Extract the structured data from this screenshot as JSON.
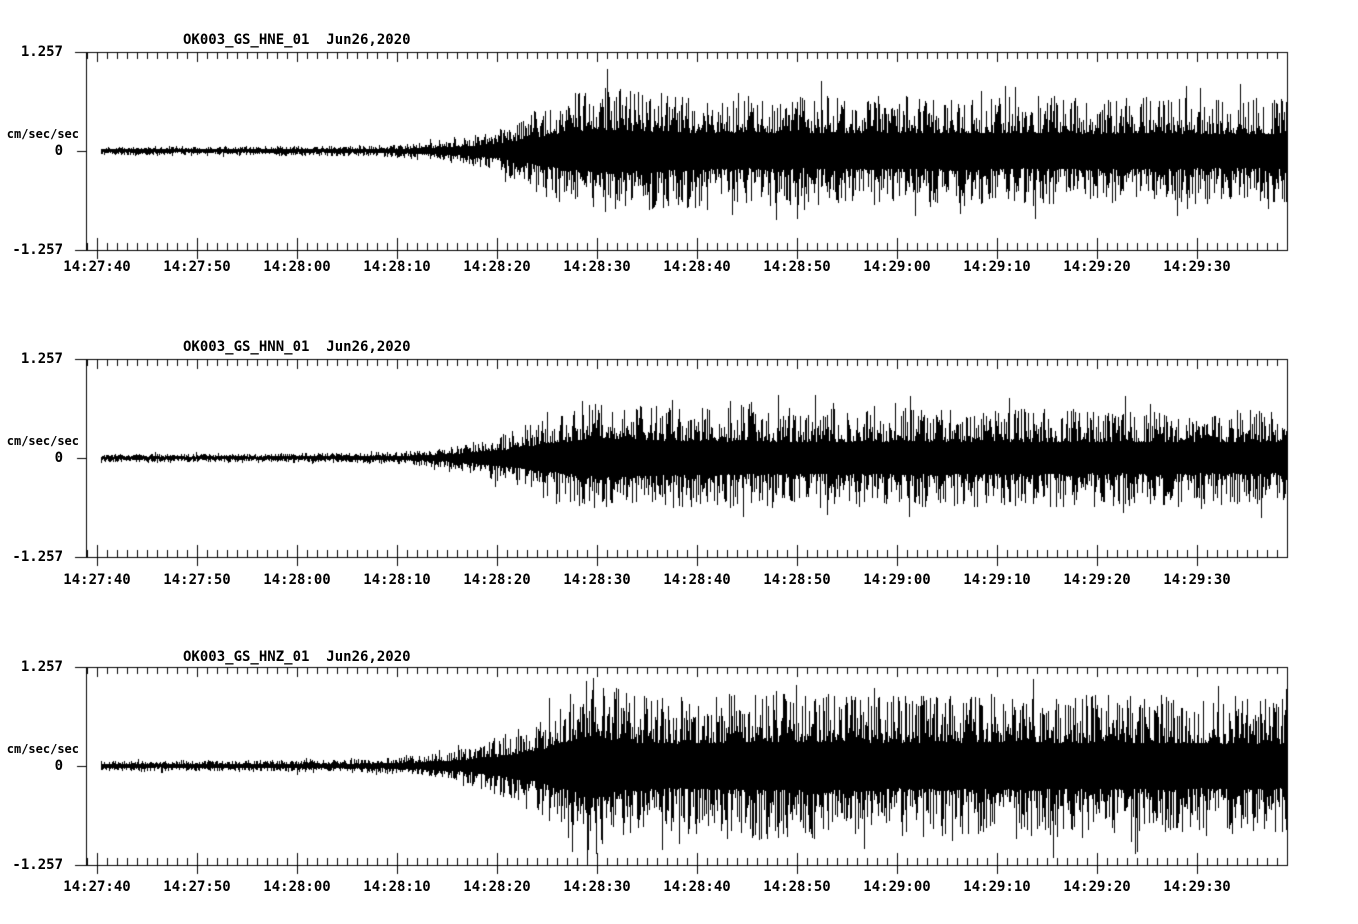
{
  "page": {
    "background": "#ffffff",
    "foreground": "#000000",
    "description": "Three-channel strong-motion seismogram strip plot, station OK003"
  },
  "chart_data": [
    {
      "type": "line",
      "kind": "seismogram-waveform",
      "title": "OK003_GS_HNE_01  Jun26,2020",
      "station_channel": "OK003_GS_HNE_01",
      "date": "Jun26,2020",
      "ylabel": "cm/sec/sec",
      "ylim": [
        -1.257,
        1.257
      ],
      "y_ticks": [
        "1.257",
        "0",
        "-1.257"
      ],
      "x_tick_labels": [
        "14:27:40",
        "14:27:50",
        "14:28:00",
        "14:28:10",
        "14:28:20",
        "14:28:30",
        "14:28:40",
        "14:28:50",
        "14:29:00",
        "14:29:10",
        "14:29:20",
        "14:29:30"
      ],
      "x_major_tick_s": 10,
      "x_minor_tick_s": 1,
      "time_window_start": "14:27:39",
      "time_window_end": "14:29:39",
      "grid": false,
      "amplitude_envelope": [
        [
          0.4,
          0.06
        ],
        [
          20,
          0.065
        ],
        [
          28,
          0.075
        ],
        [
          32,
          0.1
        ],
        [
          36,
          0.16
        ],
        [
          40,
          0.27
        ],
        [
          43,
          0.45
        ],
        [
          45,
          0.62
        ],
        [
          47,
          0.72
        ],
        [
          49,
          0.8
        ],
        [
          51,
          0.83
        ],
        [
          55,
          0.76
        ],
        [
          60,
          0.72
        ],
        [
          70,
          0.7
        ],
        [
          85,
          0.71
        ],
        [
          100,
          0.69
        ],
        [
          119,
          0.67
        ]
      ]
    },
    {
      "type": "line",
      "kind": "seismogram-waveform",
      "title": "OK003_GS_HNN_01  Jun26,2020",
      "station_channel": "OK003_GS_HNN_01",
      "date": "Jun26,2020",
      "ylabel": "cm/sec/sec",
      "ylim": [
        -1.257,
        1.257
      ],
      "y_ticks": [
        "1.257",
        "0",
        "-1.257"
      ],
      "x_tick_labels": [
        "14:27:40",
        "14:27:50",
        "14:28:00",
        "14:28:10",
        "14:28:20",
        "14:28:30",
        "14:28:40",
        "14:28:50",
        "14:29:00",
        "14:29:10",
        "14:29:20",
        "14:29:30"
      ],
      "x_major_tick_s": 10,
      "x_minor_tick_s": 1,
      "time_window_start": "14:27:39",
      "time_window_end": "14:29:39",
      "grid": false,
      "amplitude_envelope": [
        [
          0.4,
          0.055
        ],
        [
          22,
          0.06
        ],
        [
          30,
          0.08
        ],
        [
          34,
          0.12
        ],
        [
          38,
          0.22
        ],
        [
          42,
          0.38
        ],
        [
          45,
          0.55
        ],
        [
          48,
          0.68
        ],
        [
          50,
          0.76
        ],
        [
          53,
          0.72
        ],
        [
          58,
          0.66
        ],
        [
          70,
          0.63
        ],
        [
          85,
          0.64
        ],
        [
          100,
          0.62
        ],
        [
          119,
          0.61
        ]
      ]
    },
    {
      "type": "line",
      "kind": "seismogram-waveform",
      "title": "OK003_GS_HNZ_01  Jun26,2020",
      "station_channel": "OK003_GS_HNZ_01",
      "date": "Jun26,2020",
      "ylabel": "cm/sec/sec",
      "ylim": [
        -1.257,
        1.257
      ],
      "y_ticks": [
        "1.257",
        "0",
        "-1.257"
      ],
      "x_tick_labels": [
        "14:27:40",
        "14:27:50",
        "14:28:00",
        "14:28:10",
        "14:28:20",
        "14:28:30",
        "14:28:40",
        "14:28:50",
        "14:29:00",
        "14:29:10",
        "14:29:20",
        "14:29:30"
      ],
      "x_major_tick_s": 10,
      "x_minor_tick_s": 1,
      "time_window_start": "14:27:39",
      "time_window_end": "14:29:39",
      "grid": false,
      "amplitude_envelope": [
        [
          0.4,
          0.07
        ],
        [
          15,
          0.07
        ],
        [
          20,
          0.085
        ],
        [
          23,
          0.08
        ],
        [
          28,
          0.095
        ],
        [
          33,
          0.14
        ],
        [
          37,
          0.24
        ],
        [
          41,
          0.42
        ],
        [
          44,
          0.62
        ],
        [
          46.5,
          0.85
        ],
        [
          48.5,
          1.1
        ],
        [
          49.8,
          1.257
        ],
        [
          51,
          1.05
        ],
        [
          53,
          0.92
        ],
        [
          58,
          0.88
        ],
        [
          67,
          0.96
        ],
        [
          80,
          0.9
        ],
        [
          92,
          0.94
        ],
        [
          105,
          0.9
        ],
        [
          119,
          0.88
        ]
      ]
    }
  ]
}
